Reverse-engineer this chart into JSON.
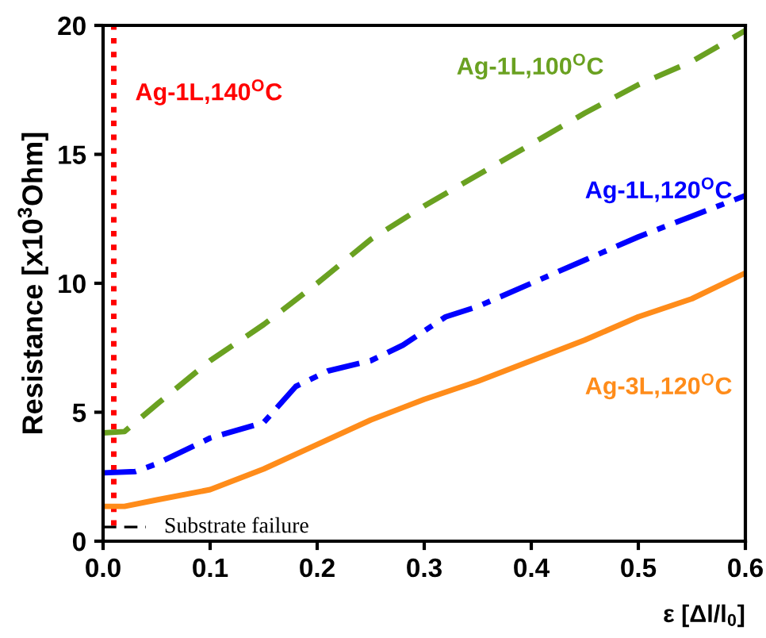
{
  "chart_data": {
    "type": "line",
    "xlabel": "ε [Δl/l$_{0}$]",
    "ylabel": "Resistance [x10$^{3}$Ohm]",
    "xlim": [
      0,
      0.6
    ],
    "ylim": [
      0,
      20
    ],
    "xticks": [
      {
        "value": 0,
        "label": "0.0"
      },
      0.1,
      0.2,
      0.3,
      0.4,
      0.5,
      0.6
    ],
    "yticks": [
      0,
      5,
      10,
      15,
      20
    ],
    "grid": false,
    "legend": false,
    "series": [
      {
        "name": "Ag-1L,140$^{O}$C",
        "color": "#ff0000",
        "line_style": "dotted",
        "x": [
          0.01,
          0.01
        ],
        "values": [
          0.6,
          20
        ]
      },
      {
        "name": "Ag-1L,100$^{O}$C",
        "color": "#6aa121",
        "line_style": "dashed",
        "x": [
          0,
          0.02,
          0.05,
          0.1,
          0.15,
          0.2,
          0.25,
          0.3,
          0.35,
          0.4,
          0.45,
          0.5,
          0.55,
          0.6
        ],
        "values": [
          4.2,
          4.25,
          5.3,
          7.0,
          8.4,
          10.0,
          11.7,
          13.0,
          14.2,
          15.4,
          16.6,
          17.7,
          18.6,
          19.8
        ]
      },
      {
        "name": "Ag-1L,120$^{O}$C",
        "color": "#0000ff",
        "line_style": "dashdot",
        "x": [
          0,
          0.03,
          0.05,
          0.1,
          0.15,
          0.18,
          0.21,
          0.25,
          0.28,
          0.32,
          0.35,
          0.4,
          0.45,
          0.5,
          0.55,
          0.6
        ],
        "values": [
          2.65,
          2.7,
          3.0,
          4.0,
          4.6,
          6.0,
          6.6,
          7.0,
          7.6,
          8.7,
          9.1,
          10.0,
          10.9,
          11.8,
          12.6,
          13.4
        ]
      },
      {
        "name": "Ag-3L,120$^{O}$C",
        "color": "#ff8c1a",
        "line_style": "solid",
        "x": [
          0,
          0.02,
          0.05,
          0.1,
          0.15,
          0.2,
          0.25,
          0.3,
          0.35,
          0.4,
          0.45,
          0.5,
          0.55,
          0.6
        ],
        "values": [
          1.35,
          1.35,
          1.6,
          2.0,
          2.8,
          3.75,
          4.7,
          5.5,
          6.2,
          7.0,
          7.8,
          8.7,
          9.4,
          10.4
        ]
      },
      {
        "name": "Substrate failure",
        "color": "#000000",
        "line_style": "dashed",
        "x": [
          0,
          0.04
        ],
        "values": [
          0.55,
          0.55
        ]
      }
    ]
  }
}
